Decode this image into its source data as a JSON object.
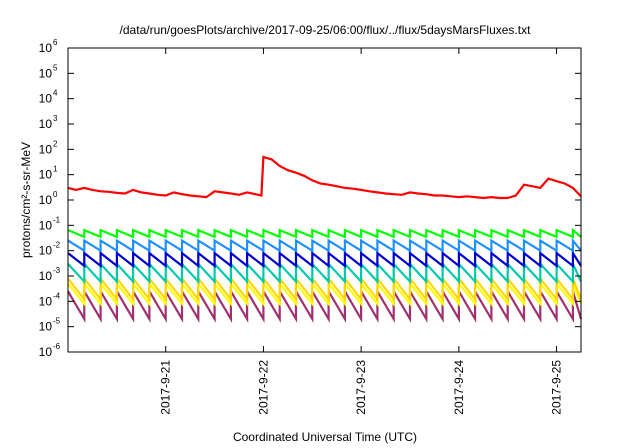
{
  "chart_data": {
    "type": "line",
    "title": "/data/run/goesPlots/archive/2017-09-25/06:00/flux/../flux/5daysMarsFluxes.txt",
    "xlabel": "Coordinated Universal Time (UTC)",
    "ylabel": "protons/cm²-s-sr-MeV",
    "yscale": "log",
    "ylim": [
      1e-06,
      1000000.0
    ],
    "xlim": [
      "2017-09-20T00:00",
      "2017-09-25T06:00"
    ],
    "grid": false,
    "legend": "none",
    "y_ticks": [
      {
        "base": "10",
        "exp": "-6",
        "value": 1e-06
      },
      {
        "base": "10",
        "exp": "-5",
        "value": 1e-05
      },
      {
        "base": "10",
        "exp": "-4",
        "value": 0.0001
      },
      {
        "base": "10",
        "exp": "-3",
        "value": 0.001
      },
      {
        "base": "10",
        "exp": "-2",
        "value": 0.01
      },
      {
        "base": "10",
        "exp": "-1",
        "value": 0.1
      },
      {
        "base": "10",
        "exp": "0",
        "value": 1
      },
      {
        "base": "10",
        "exp": "1",
        "value": 10
      },
      {
        "base": "10",
        "exp": "2",
        "value": 100
      },
      {
        "base": "10",
        "exp": "3",
        "value": 1000
      },
      {
        "base": "10",
        "exp": "4",
        "value": 10000
      },
      {
        "base": "10",
        "exp": "5",
        "value": 100000
      },
      {
        "base": "10",
        "exp": "6",
        "value": 1000000
      }
    ],
    "x_ticks": [
      {
        "label": "2017-9-21",
        "value": "2017-09-21T00:00"
      },
      {
        "label": "2017-9-22",
        "value": "2017-09-22T00:00"
      },
      {
        "label": "2017-9-23",
        "value": "2017-09-23T00:00"
      },
      {
        "label": "2017-9-24",
        "value": "2017-09-24T00:00"
      },
      {
        "label": "2017-9-25",
        "value": "2017-09-25T00:00"
      }
    ],
    "series": [
      {
        "color": "#ff0000",
        "points": [
          [
            "2017-09-20T00:00",
            3.0
          ],
          [
            "2017-09-20T02:00",
            2.5
          ],
          [
            "2017-09-20T04:00",
            3.0
          ],
          [
            "2017-09-20T06:00",
            2.5
          ],
          [
            "2017-09-20T08:00",
            2.2
          ],
          [
            "2017-09-20T10:00",
            2.1
          ],
          [
            "2017-09-20T12:00",
            1.9
          ],
          [
            "2017-09-20T14:00",
            1.8
          ],
          [
            "2017-09-20T16:00",
            2.5
          ],
          [
            "2017-09-20T18:00",
            2.0
          ],
          [
            "2017-09-20T20:00",
            1.8
          ],
          [
            "2017-09-20T22:00",
            1.6
          ],
          [
            "2017-09-21T00:00",
            1.5
          ],
          [
            "2017-09-21T02:00",
            2.0
          ],
          [
            "2017-09-21T04:00",
            1.7
          ],
          [
            "2017-09-21T06:00",
            1.5
          ],
          [
            "2017-09-21T08:00",
            1.4
          ],
          [
            "2017-09-21T10:00",
            1.3
          ],
          [
            "2017-09-21T12:00",
            2.2
          ],
          [
            "2017-09-21T14:00",
            2.0
          ],
          [
            "2017-09-21T16:00",
            1.8
          ],
          [
            "2017-09-21T18:00",
            1.6
          ],
          [
            "2017-09-21T20:00",
            2.0
          ],
          [
            "2017-09-21T22:00",
            1.7
          ],
          [
            "2017-09-21T23:30",
            1.5
          ],
          [
            "2017-09-22T00:00",
            50
          ],
          [
            "2017-09-22T02:00",
            40
          ],
          [
            "2017-09-22T04:00",
            22
          ],
          [
            "2017-09-22T06:00",
            15
          ],
          [
            "2017-09-22T08:00",
            12
          ],
          [
            "2017-09-22T10:00",
            9
          ],
          [
            "2017-09-22T12:00",
            6
          ],
          [
            "2017-09-22T14:00",
            4.5
          ],
          [
            "2017-09-22T16:00",
            4.0
          ],
          [
            "2017-09-22T18:00",
            3.5
          ],
          [
            "2017-09-22T20:00",
            3.0
          ],
          [
            "2017-09-22T22:00",
            2.8
          ],
          [
            "2017-09-23T00:00",
            2.5
          ],
          [
            "2017-09-23T02:00",
            2.2
          ],
          [
            "2017-09-23T04:00",
            2.0
          ],
          [
            "2017-09-23T06:00",
            1.8
          ],
          [
            "2017-09-23T08:00",
            1.7
          ],
          [
            "2017-09-23T10:00",
            1.6
          ],
          [
            "2017-09-23T12:00",
            2.0
          ],
          [
            "2017-09-23T14:00",
            1.8
          ],
          [
            "2017-09-23T16:00",
            1.7
          ],
          [
            "2017-09-23T18:00",
            1.5
          ],
          [
            "2017-09-23T20:00",
            1.5
          ],
          [
            "2017-09-23T22:00",
            1.4
          ],
          [
            "2017-09-24T00:00",
            1.3
          ],
          [
            "2017-09-24T02:00",
            1.4
          ],
          [
            "2017-09-24T04:00",
            1.3
          ],
          [
            "2017-09-24T06:00",
            1.2
          ],
          [
            "2017-09-24T08:00",
            1.3
          ],
          [
            "2017-09-24T10:00",
            1.2
          ],
          [
            "2017-09-24T12:00",
            1.2
          ],
          [
            "2017-09-24T14:00",
            1.5
          ],
          [
            "2017-09-24T16:00",
            4.0
          ],
          [
            "2017-09-24T18:00",
            3.5
          ],
          [
            "2017-09-24T20:00",
            3.0
          ],
          [
            "2017-09-24T22:00",
            7.0
          ],
          [
            "2017-09-25T00:00",
            5.5
          ],
          [
            "2017-09-25T02:00",
            4.5
          ],
          [
            "2017-09-25T04:00",
            3.0
          ],
          [
            "2017-09-25T06:00",
            1.4
          ]
        ]
      },
      {
        "color": "#00ff00",
        "high": 0.065,
        "low": 0.035,
        "period_hours": 4
      },
      {
        "color": "#1e90ff",
        "high": 0.025,
        "low": 0.01,
        "period_hours": 4
      },
      {
        "color": "#0000cd",
        "high": 0.008,
        "low": 0.0025,
        "period_hours": 4
      },
      {
        "color": "#00c8aa",
        "high": 0.003,
        "low": 0.0006,
        "period_hours": 4
      },
      {
        "color": "#ffd700",
        "high": 0.0008,
        "low": 0.00012,
        "period_hours": 4
      },
      {
        "color": "#ffff00",
        "high": 0.0005,
        "low": 8e-05,
        "period_hours": 4
      },
      {
        "color": "#a0306e",
        "high": 0.00025,
        "low": 2e-05,
        "period_hours": 4
      }
    ]
  }
}
